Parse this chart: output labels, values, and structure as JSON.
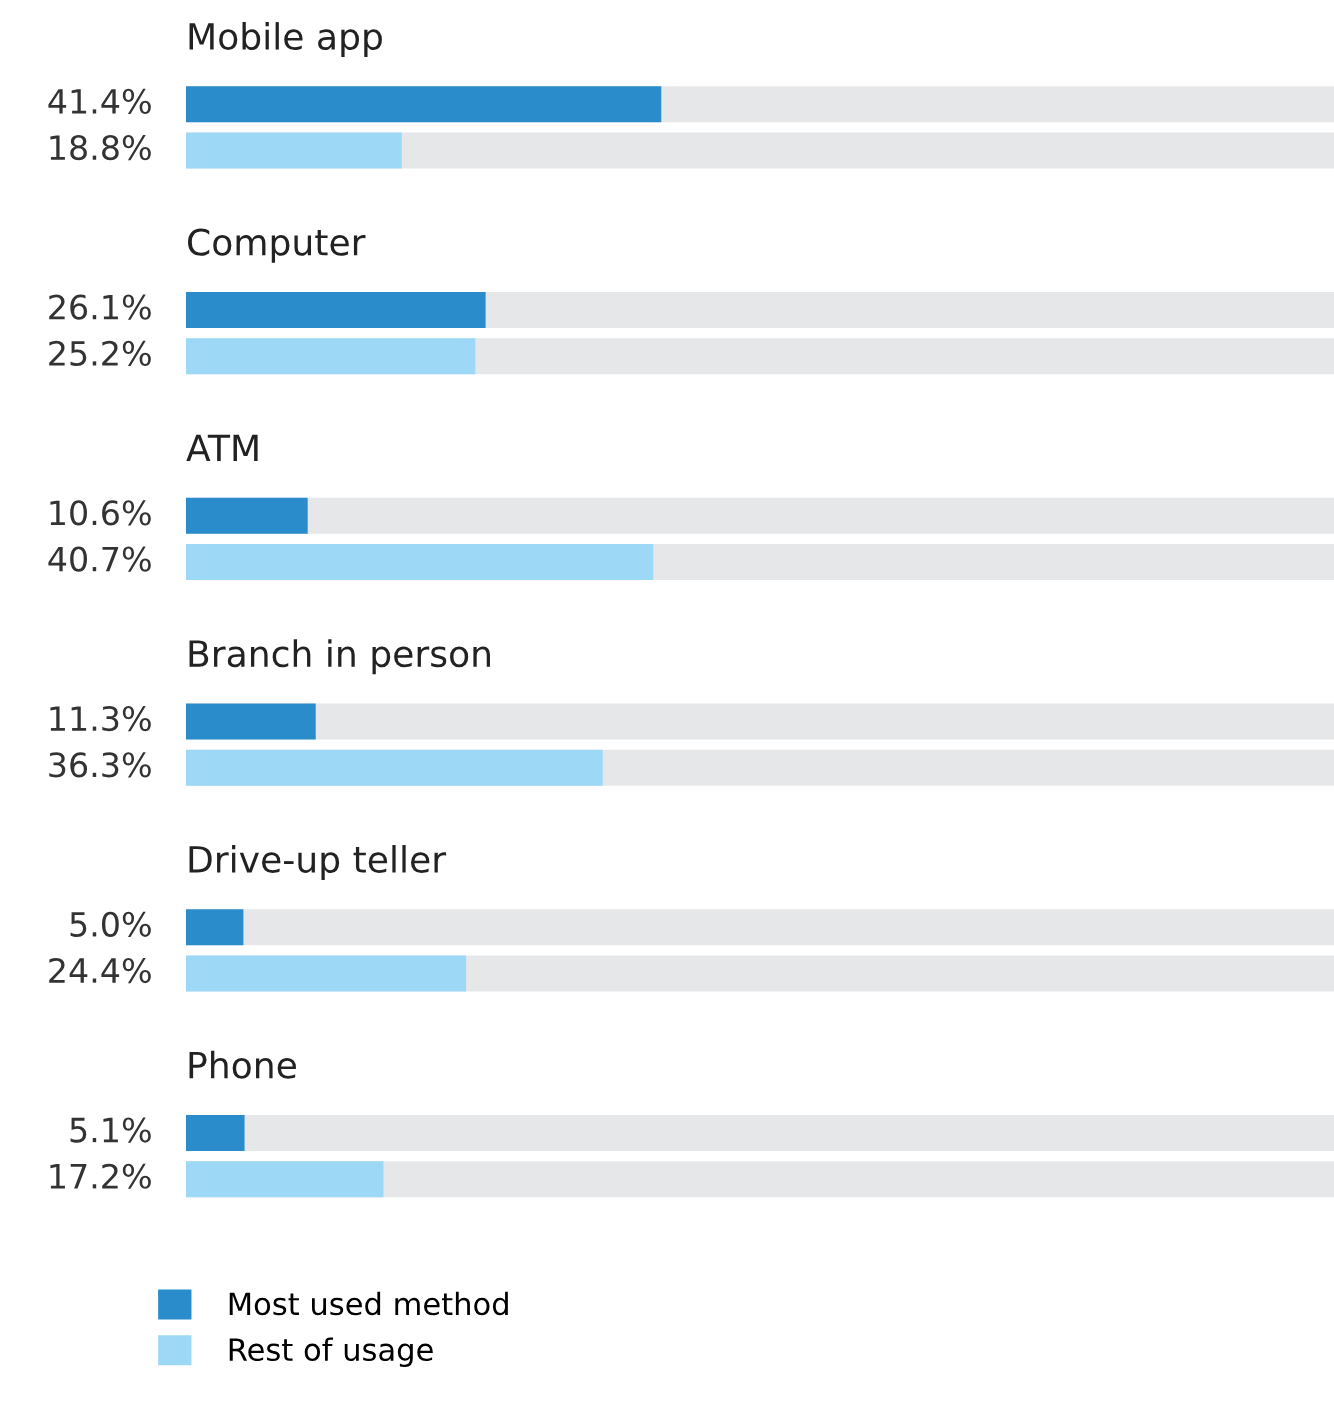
{
  "chart_data": {
    "type": "bar",
    "orientation": "horizontal",
    "categories": [
      "Mobile app",
      "Computer",
      "ATM",
      "Branch in person",
      "Drive-up teller",
      "Phone"
    ],
    "series": [
      {
        "name": "Most used method",
        "color": "#2b8ccc",
        "values": [
          41.4,
          26.1,
          10.6,
          11.3,
          5.0,
          5.1
        ],
        "value_labels": [
          "41.4%",
          "26.1%",
          "10.6%",
          "11.3%",
          "5.0%",
          "5.1%"
        ]
      },
      {
        "name": "Rest of usage",
        "color": "#9dd9f7",
        "values": [
          18.8,
          25.2,
          40.7,
          36.3,
          24.4,
          17.2
        ],
        "value_labels": [
          "18.8%",
          "25.2%",
          "40.7%",
          "36.3%",
          "24.4%",
          "17.2%"
        ]
      }
    ],
    "xlim": [
      0,
      100
    ],
    "legend": "bottom left"
  }
}
